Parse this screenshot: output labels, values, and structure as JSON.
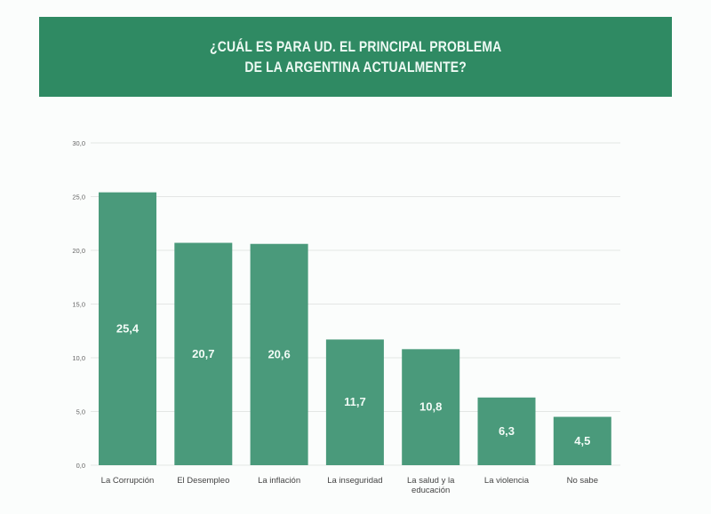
{
  "chart_data": {
    "type": "bar",
    "title": [
      "¿CUÁL ES PARA UD. EL PRINCIPAL PROBLEMA",
      "DE LA ARGENTINA ACTUALMENTE?"
    ],
    "categories": [
      "La Corrupción",
      "El Desempleo",
      "La inflación",
      "La inseguridad",
      "La salud y la educación",
      "La violencia",
      "No sabe"
    ],
    "category_lines": [
      [
        "La Corrupción"
      ],
      [
        "El Desempleo"
      ],
      [
        "La inflación"
      ],
      [
        "La inseguridad"
      ],
      [
        "La salud y la",
        "educación"
      ],
      [
        "La violencia"
      ],
      [
        "No sabe"
      ]
    ],
    "values": [
      25.4,
      20.7,
      20.6,
      11.7,
      10.8,
      6.3,
      4.5
    ],
    "data_labels": [
      "25,4",
      "20,7",
      "20,6",
      "11,7",
      "10,8",
      "6,3",
      "4,5"
    ],
    "yticks": [
      0,
      5,
      10,
      15,
      20,
      25,
      30
    ],
    "ytick_labels": [
      "0,0",
      "5,0",
      "10,0",
      "15,0",
      "20,0",
      "25,0",
      "30,0"
    ],
    "ylim": [
      0,
      30
    ],
    "xlabel": "",
    "ylabel": "",
    "grid": true,
    "colors": {
      "banner": "#2f8a63",
      "bar": "#4a9a7b",
      "grid": "#e3e6e4"
    }
  }
}
